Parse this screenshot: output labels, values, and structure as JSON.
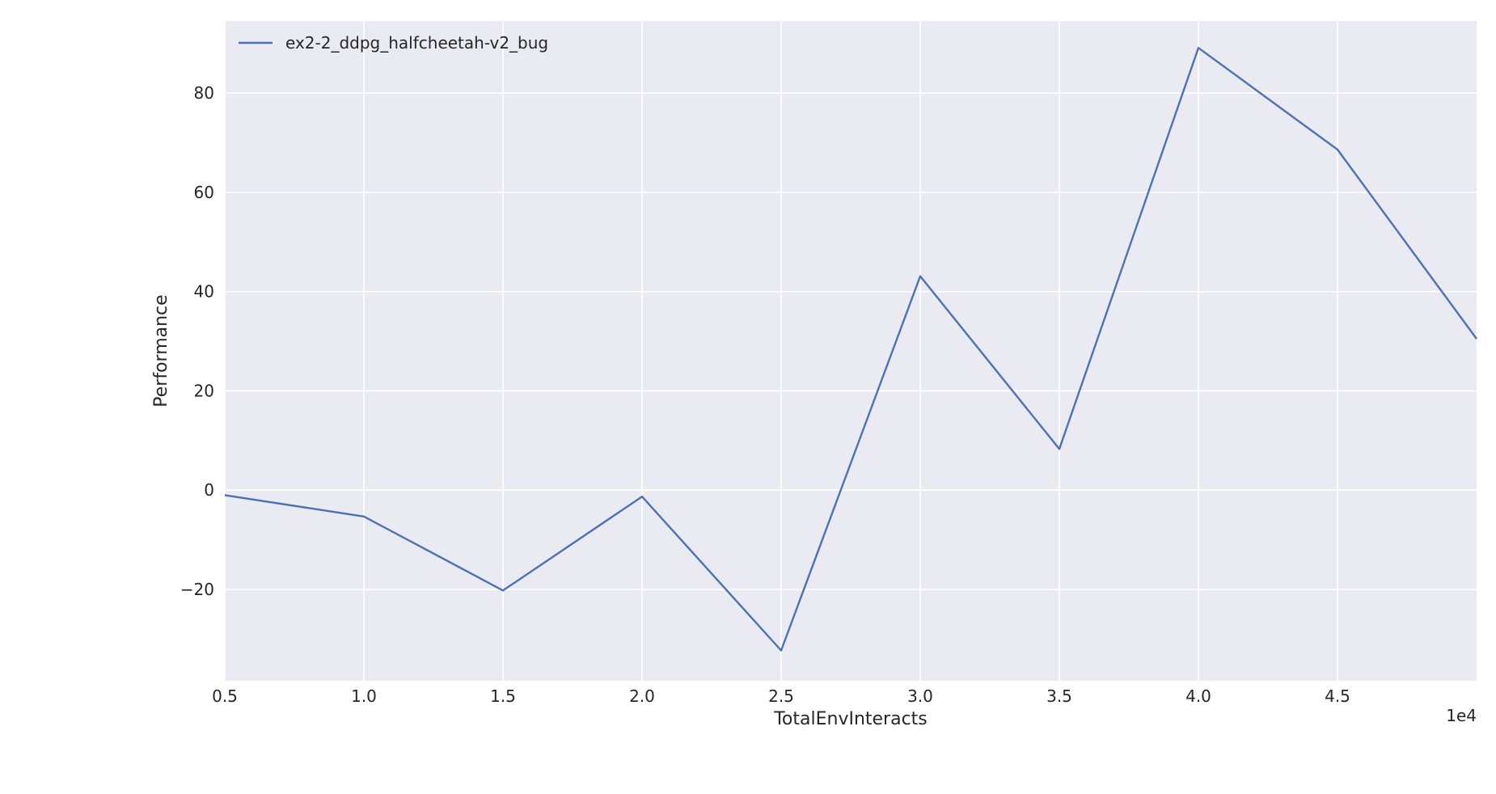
{
  "chart_data": {
    "type": "line",
    "x": [
      5000,
      10000,
      15000,
      20000,
      25000,
      30000,
      35000,
      40000,
      45000,
      50000
    ],
    "series": [
      {
        "name": "ex2-2_ddpg_halfcheetah-v2_bug",
        "color": "#4c72b0",
        "values": [
          -1,
          -5.3,
          -20.2,
          -1.3,
          -32.3,
          43.1,
          8.3,
          89.1,
          68.6,
          30.5
        ]
      }
    ],
    "xlabel": "TotalEnvInteracts",
    "ylabel": "Performance",
    "x_offset_label": "1e4",
    "xlim": [
      5000,
      50000
    ],
    "ylim": [
      -38.4,
      94.5
    ],
    "x_ticks": [
      5000,
      10000,
      15000,
      20000,
      25000,
      30000,
      35000,
      40000,
      45000
    ],
    "x_tick_labels": [
      "0.5",
      "1.0",
      "1.5",
      "2.0",
      "2.5",
      "3.0",
      "3.5",
      "4.0",
      "4.5"
    ],
    "y_ticks": [
      -20,
      0,
      20,
      40,
      60,
      80
    ],
    "y_tick_labels": [
      "−20",
      "0",
      "20",
      "40",
      "60",
      "80"
    ],
    "grid": true,
    "legend_position": "top-left",
    "background_color": "#eaeaf2",
    "grid_color": "#ffffff"
  }
}
